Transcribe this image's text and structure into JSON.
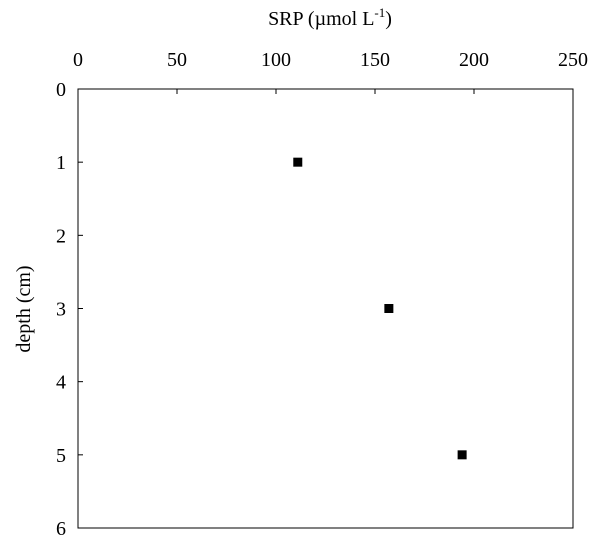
{
  "chart_data": {
    "type": "scatter",
    "xlabel": "SRP (µmol L",
    "xlabel_superscript": "-1",
    "xlabel_suffix": ")",
    "ylabel": "depth (cm)",
    "xlim": [
      0,
      250
    ],
    "ylim": [
      0,
      6
    ],
    "x_axis_position": "top",
    "y_axis_inverted": true,
    "grid": false,
    "x_ticks": [
      0,
      50,
      100,
      150,
      200,
      250
    ],
    "y_ticks": [
      0,
      1,
      2,
      3,
      4,
      5,
      6
    ],
    "series": [
      {
        "marker": "square",
        "color": "#000000",
        "points": [
          {
            "x": 111,
            "y": 1
          },
          {
            "x": 157,
            "y": 3
          },
          {
            "x": 194,
            "y": 5
          }
        ]
      }
    ]
  }
}
